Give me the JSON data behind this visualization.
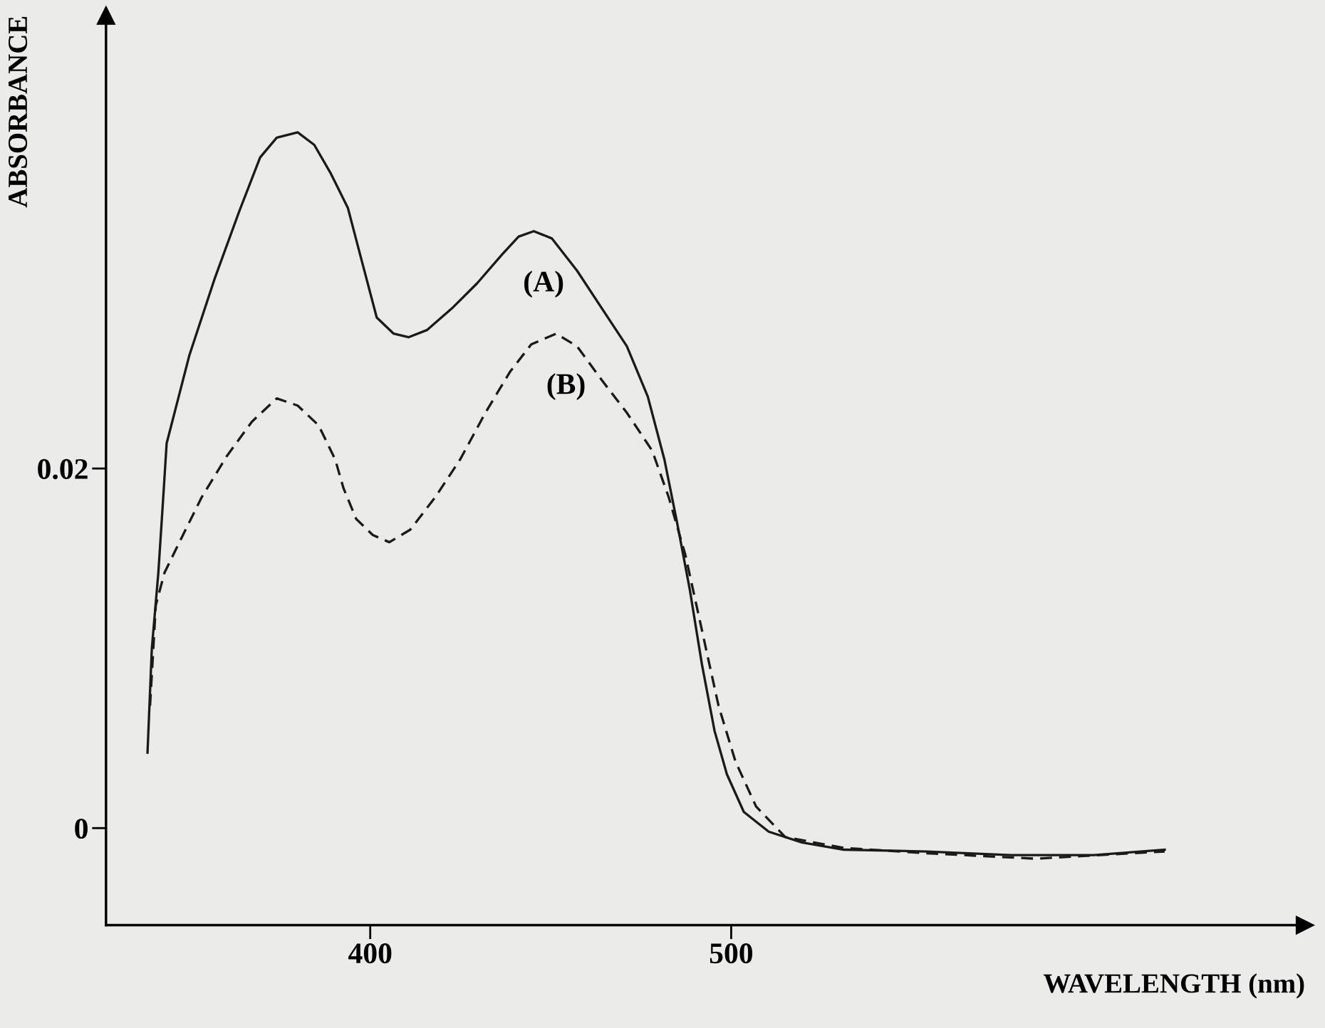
{
  "chart_data": {
    "type": "line",
    "xlabel": "WAVELENGTH (nm)",
    "ylabel": "ABSORBANCE",
    "xlim": [
      326.8,
      659
    ],
    "ylim": [
      -0.0054,
      0.0452
    ],
    "xticks": [
      400,
      500
    ],
    "yticks": [
      0,
      0.02
    ],
    "grid": false,
    "legend": false,
    "marker": "none",
    "series": [
      {
        "name": "(A)",
        "color": "#1a1a1a",
        "line_style": "solid",
        "x": [
          338.3,
          339.5,
          341.3,
          342.5,
          343.6,
          349.9,
          356.8,
          363.7,
          369.5,
          374.1,
          379.9,
          384.5,
          389.1,
          393.8,
          397.2,
          401.8,
          406.5,
          410.6,
          415.7,
          422.6,
          429.6,
          436.5,
          441.1,
          445.3,
          450.3,
          457.3,
          464.2,
          471.1,
          476.9,
          481.5,
          485.0,
          488.5,
          491.9,
          495.4,
          498.8,
          503.5,
          510.4,
          519.6,
          531.2,
          554.3,
          577.4,
          600.5,
          620.1
        ],
        "values": [
          0.0042,
          0.01,
          0.0142,
          0.0179,
          0.0214,
          0.0263,
          0.0305,
          0.0343,
          0.0373,
          0.0384,
          0.0387,
          0.038,
          0.0364,
          0.0345,
          0.0319,
          0.0284,
          0.0275,
          0.0273,
          0.0277,
          0.0289,
          0.0303,
          0.0319,
          0.0329,
          0.0332,
          0.0328,
          0.031,
          0.0289,
          0.0268,
          0.024,
          0.0205,
          0.017,
          0.0133,
          0.0091,
          0.0054,
          0.003,
          0.0009,
          -0.0002,
          -0.0008,
          -0.0012,
          -0.0013,
          -0.0015,
          -0.0015,
          -0.0012
        ]
      },
      {
        "name": "(B)",
        "color": "#1a1a1a",
        "line_style": "dashed",
        "x": [
          339.0,
          340.6,
          343.0,
          346.4,
          353.3,
          360.3,
          367.2,
          374.1,
          379.9,
          385.7,
          390.3,
          392.6,
          396.1,
          400.7,
          405.3,
          411.1,
          418.0,
          424.9,
          431.9,
          438.8,
          444.6,
          451.5,
          457.3,
          464.2,
          471.1,
          478.1,
          482.7,
          487.3,
          491.9,
          496.5,
          501.2,
          506.9,
          515.0,
          531.2,
          554.3,
          584.3,
          620.1
        ],
        "values": [
          0.0068,
          0.0124,
          0.0142,
          0.0156,
          0.0184,
          0.0207,
          0.0226,
          0.0239,
          0.0235,
          0.0224,
          0.0205,
          0.0189,
          0.0172,
          0.0163,
          0.0159,
          0.0166,
          0.0184,
          0.0205,
          0.0231,
          0.0254,
          0.0269,
          0.0275,
          0.0268,
          0.0249,
          0.0231,
          0.021,
          0.0184,
          0.0152,
          0.011,
          0.0068,
          0.0037,
          0.0012,
          -0.0005,
          -0.0011,
          -0.0014,
          -0.0017,
          -0.0013
        ]
      }
    ]
  }
}
